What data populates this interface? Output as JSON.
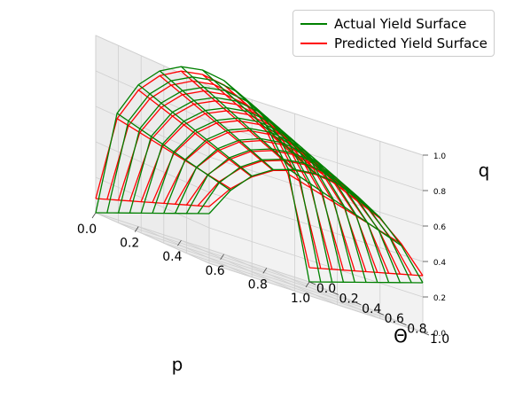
{
  "chart_data": {
    "type": "surface3d",
    "title": "",
    "xlabel": "p",
    "ylabel": "Θ",
    "zlabel": "q",
    "x_ticks": [
      "0.0",
      "0.2",
      "0.4",
      "0.6",
      "0.8",
      "1.0"
    ],
    "y_ticks": [
      "0.0",
      "0.2",
      "0.4",
      "0.6",
      "0.8",
      "1.0"
    ],
    "z_ticks": [
      "0.0",
      "0.2",
      "0.4",
      "0.6",
      "0.8",
      "1.0"
    ],
    "xlim": [
      0,
      1
    ],
    "ylim": [
      0,
      1
    ],
    "zlim": [
      0,
      1
    ],
    "grid": true,
    "legend_position": "top-right",
    "series": [
      {
        "name": "Actual Yield Surface",
        "color": "#008000",
        "p": [
          0.0,
          0.1,
          0.2,
          0.3,
          0.4,
          0.5,
          0.6,
          0.7,
          0.8,
          0.9,
          1.0
        ],
        "theta": [
          0.0,
          0.1,
          0.2,
          0.3,
          0.4,
          0.5,
          0.6,
          0.7,
          0.8,
          0.9,
          1.0
        ],
        "q_at_theta0": [
          0.0,
          0.6,
          0.8,
          0.917,
          0.98,
          1.0,
          0.98,
          0.917,
          0.8,
          0.6,
          0.0
        ],
        "q_at_theta1": [
          0.28,
          0.45,
          0.57,
          0.645,
          0.685,
          0.7,
          0.685,
          0.645,
          0.57,
          0.45,
          0.28
        ]
      },
      {
        "name": "Predicted Yield Surface",
        "color": "#ff0000",
        "p": [
          0.0,
          0.1,
          0.2,
          0.3,
          0.4,
          0.5,
          0.6,
          0.7,
          0.8,
          0.9,
          1.0
        ],
        "theta": [
          0.0,
          0.1,
          0.2,
          0.3,
          0.4,
          0.5,
          0.6,
          0.7,
          0.8,
          0.9,
          1.0
        ],
        "q_at_theta0": [
          0.08,
          0.57,
          0.77,
          0.89,
          0.955,
          0.975,
          0.955,
          0.89,
          0.77,
          0.57,
          0.08
        ],
        "q_at_theta1": [
          0.32,
          0.46,
          0.565,
          0.64,
          0.68,
          0.695,
          0.68,
          0.64,
          0.565,
          0.46,
          0.32
        ]
      }
    ]
  }
}
